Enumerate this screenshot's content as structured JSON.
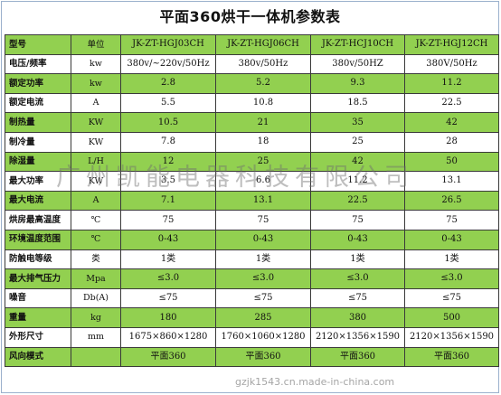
{
  "title": "平面360烘干一体机参数表",
  "header": [
    "型号",
    "单位",
    "JK-ZT-HGJ03CH",
    "JK-ZT-HGJ06CH",
    "JK-ZT-HCJ10CH",
    "JK-ZT-HGJ12CH"
  ],
  "rows": [
    [
      "电压/频率",
      "kw",
      "380v/~220v/50Hz",
      "380v/50Hz",
      "380v/50HZ",
      "380V/50Hz"
    ],
    [
      "额定功率",
      "kw",
      "2.8",
      "5.2",
      "9.3",
      "11.2"
    ],
    [
      "额定电流",
      "A",
      "5.5",
      "10.8",
      "18.5",
      "22.5"
    ],
    [
      "制热量",
      "KW",
      "10.5",
      "21",
      "35",
      "42"
    ],
    [
      "制冷量",
      "KW",
      "7.8",
      "18",
      "25",
      "28"
    ],
    [
      "除湿量",
      "L/H",
      "12",
      "25",
      "42",
      "50"
    ],
    [
      "最大功率",
      "KW",
      "3.5",
      "6.6",
      "11.2",
      "13.1"
    ],
    [
      "最大电流",
      "A",
      "7.1",
      "13.1",
      "22.5",
      "26.5"
    ],
    [
      "烘房最高温度",
      "℃",
      "75",
      "75",
      "75",
      "75"
    ],
    [
      "环境温度范围",
      "℃",
      "0-43",
      "0-43",
      "0-43",
      "0-43"
    ],
    [
      "防触电等级",
      "类",
      "1类",
      "1类",
      "1类",
      "1类"
    ],
    [
      "最大排气压力",
      "Mpa",
      "≤3.0",
      "≤3.0",
      "≤3.0",
      "≤3.0"
    ],
    [
      "噪音",
      "Db(A)",
      "≤75",
      "≤75",
      "≤75",
      "≤75"
    ],
    [
      "重量",
      "kg",
      "180",
      "285",
      "380",
      "500"
    ],
    [
      "外形尺寸",
      "mm",
      "1675×860×1280",
      "1760×1060×1280",
      "2120×1356×1590",
      "2120×1356×1590"
    ],
    [
      "风向模式",
      "",
      "平面360",
      "平面360",
      "平面360",
      "平面360"
    ]
  ],
  "watermark": "广州凯能电器科技有限公司",
  "url_watermark": "gzjk1543.cn.made-in-china.com"
}
